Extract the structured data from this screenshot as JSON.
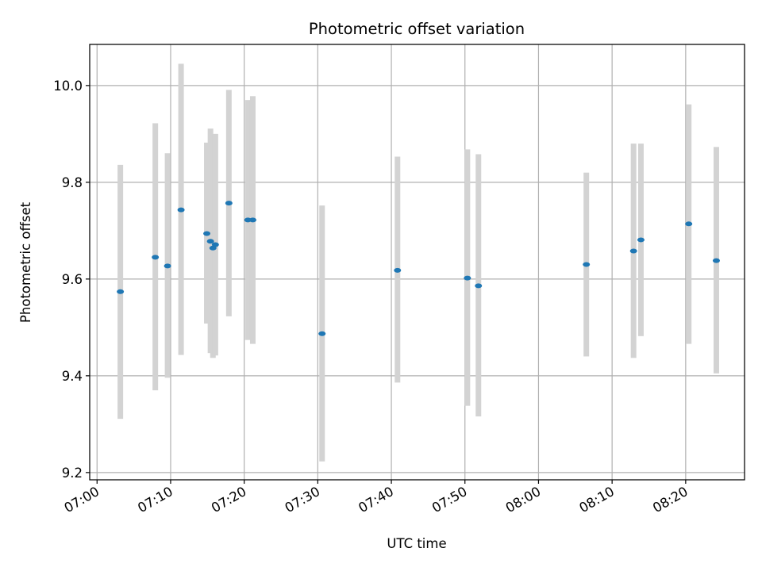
{
  "chart_data": {
    "type": "scatter",
    "title": "Photometric offset variation",
    "xlabel": "UTC time",
    "ylabel": "Photometric offset",
    "grid": true,
    "colors": {
      "point": "#1f77b4",
      "errorbar": "#d3d3d3",
      "grid": "#b0b0b0"
    },
    "xlim": [
      "06:59",
      "08:28"
    ],
    "ylim": [
      9.185,
      10.085
    ],
    "x_ticks": [
      "07:00",
      "07:10",
      "07:20",
      "07:30",
      "07:40",
      "07:50",
      "08:00",
      "08:10",
      "08:20"
    ],
    "y_ticks": [
      "9.2",
      "9.4",
      "9.6",
      "9.8",
      "10.0"
    ],
    "points": [
      {
        "time": "07:03:10",
        "y": 9.574,
        "err_low": 9.311,
        "err_high": 9.836
      },
      {
        "time": "07:07:55",
        "y": 9.645,
        "err_low": 9.37,
        "err_high": 9.922
      },
      {
        "time": "07:09:35",
        "y": 9.627,
        "err_low": 9.396,
        "err_high": 9.86
      },
      {
        "time": "07:11:25",
        "y": 9.743,
        "err_low": 9.443,
        "err_high": 10.045
      },
      {
        "time": "07:14:55",
        "y": 9.694,
        "err_low": 9.508,
        "err_high": 9.882
      },
      {
        "time": "07:15:25",
        "y": 9.678,
        "err_low": 9.447,
        "err_high": 9.911
      },
      {
        "time": "07:15:45",
        "y": 9.664,
        "err_low": 9.437,
        "err_high": 9.892
      },
      {
        "time": "07:16:05",
        "y": 9.671,
        "err_low": 9.442,
        "err_high": 9.9
      },
      {
        "time": "07:17:55",
        "y": 9.757,
        "err_low": 9.523,
        "err_high": 9.991
      },
      {
        "time": "07:20:30",
        "y": 9.722,
        "err_low": 9.474,
        "err_high": 9.97
      },
      {
        "time": "07:21:10",
        "y": 9.722,
        "err_low": 9.466,
        "err_high": 9.978
      },
      {
        "time": "07:30:35",
        "y": 9.487,
        "err_low": 9.223,
        "err_high": 9.752
      },
      {
        "time": "07:40:50",
        "y": 9.618,
        "err_low": 9.386,
        "err_high": 9.853
      },
      {
        "time": "07:50:20",
        "y": 9.602,
        "err_low": 9.338,
        "err_high": 9.868
      },
      {
        "time": "07:51:50",
        "y": 9.586,
        "err_low": 9.316,
        "err_high": 9.858
      },
      {
        "time": "08:06:30",
        "y": 9.63,
        "err_low": 9.44,
        "err_high": 9.82
      },
      {
        "time": "08:12:55",
        "y": 9.658,
        "err_low": 9.437,
        "err_high": 9.88
      },
      {
        "time": "08:13:55",
        "y": 9.681,
        "err_low": 9.482,
        "err_high": 9.88
      },
      {
        "time": "08:20:25",
        "y": 9.714,
        "err_low": 9.466,
        "err_high": 9.961
      },
      {
        "time": "08:24:10",
        "y": 9.638,
        "err_low": 9.405,
        "err_high": 9.873
      }
    ]
  }
}
